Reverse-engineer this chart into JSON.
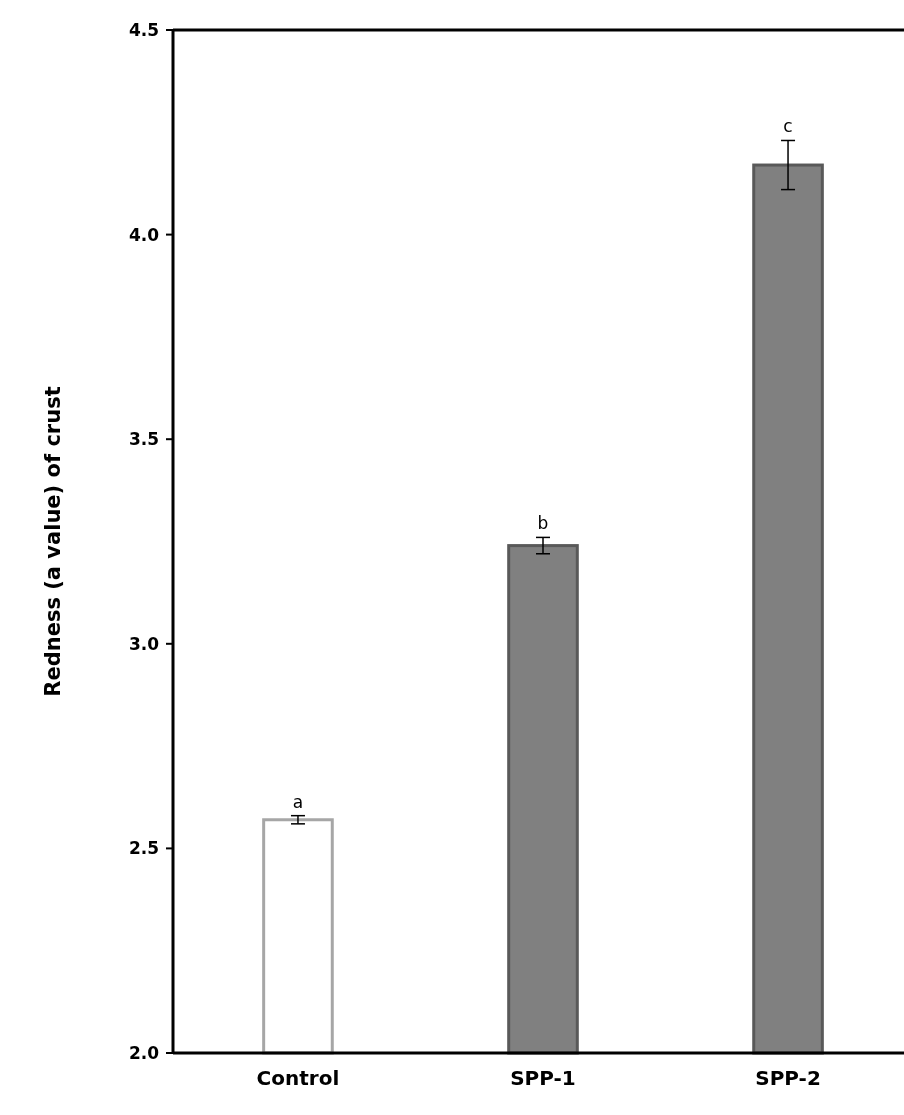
{
  "chart_data": {
    "type": "bar",
    "ylabel": "Redness (a value) of crust",
    "categories": [
      "Control",
      "SPP-1",
      "SPP-2"
    ],
    "values": [
      2.57,
      3.24,
      4.17
    ],
    "colors": [
      "#ffffff",
      "#808080",
      "#808080"
    ],
    "errors": [
      0.01,
      0.02,
      0.06
    ],
    "ylim": [
      2,
      4.5
    ],
    "yticks": [
      {
        "value": 2,
        "label": "2.0"
      },
      {
        "value": 2.5,
        "label": "2.5"
      },
      {
        "value": 3,
        "label": "3.0"
      },
      {
        "value": 3.5,
        "label": "3.5"
      },
      {
        "value": 4,
        "label": "4.0"
      },
      {
        "value": 4.5,
        "label": "4.5"
      }
    ],
    "annotations": [
      {
        "text": "a",
        "x": "Control",
        "y": 2.58
      },
      {
        "text": "b",
        "x": "SPP-1",
        "y": 3.26
      },
      {
        "text": "c",
        "x": "SPP-2",
        "y": 4.23
      }
    ],
    "grid": false
  }
}
